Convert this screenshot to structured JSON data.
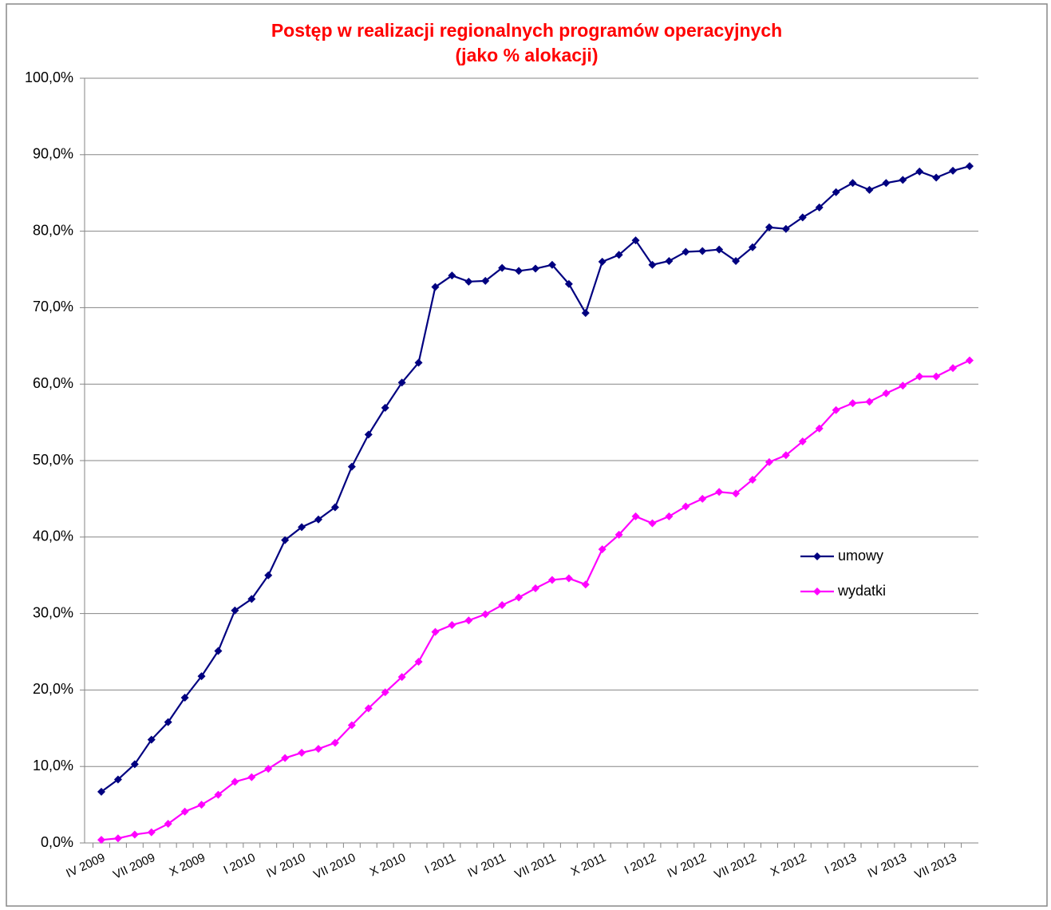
{
  "chart_data": {
    "type": "line",
    "title": "Postęp w realizacji regionalnych programów operacyjnych",
    "subtitle": "(jako % alokacji)",
    "categories": [
      "IV 2009",
      null,
      null,
      "VII 2009",
      null,
      null,
      "X 2009",
      null,
      null,
      "I 2010",
      null,
      null,
      "IV 2010",
      null,
      null,
      "VII 2010",
      null,
      null,
      "X 2010",
      null,
      null,
      "I 2011",
      null,
      null,
      "IV 2011",
      null,
      null,
      "VII 2011",
      null,
      null,
      "X 2011",
      null,
      null,
      "I 2012",
      null,
      null,
      "IV 2012",
      null,
      null,
      "VII 2012",
      null,
      null,
      "X 2012",
      null,
      null,
      "I 2013",
      null,
      null,
      "IV 2013",
      null,
      null,
      "VII 2013",
      null
    ],
    "series": [
      {
        "name": "umowy",
        "color": "#000080",
        "values": [
          6.7,
          8.3,
          10.3,
          13.5,
          15.8,
          19.0,
          21.8,
          25.1,
          30.4,
          31.9,
          35.0,
          39.6,
          41.3,
          42.3,
          43.9,
          49.2,
          53.4,
          56.9,
          60.2,
          62.8,
          72.7,
          74.2,
          73.4,
          73.5,
          75.2,
          74.8,
          75.1,
          75.6,
          73.1,
          69.3,
          76.0,
          76.9,
          78.8,
          75.6,
          76.1,
          77.3,
          77.4,
          77.6,
          76.1,
          77.9,
          80.5,
          80.3,
          81.8,
          83.1,
          85.1,
          86.3,
          85.4,
          86.3,
          86.7,
          87.8,
          87.0,
          87.9,
          88.5
        ]
      },
      {
        "name": "wydatki",
        "color": "#ff00ff",
        "values": [
          0.4,
          0.6,
          1.1,
          1.4,
          2.5,
          4.1,
          5.0,
          6.3,
          8.0,
          8.6,
          9.7,
          11.1,
          11.8,
          12.3,
          13.1,
          15.4,
          17.6,
          19.7,
          21.7,
          23.7,
          27.6,
          28.5,
          29.1,
          29.9,
          31.1,
          32.1,
          33.3,
          34.4,
          34.6,
          33.8,
          38.4,
          40.3,
          42.7,
          41.8,
          42.7,
          44.0,
          45.0,
          45.9,
          45.7,
          47.5,
          49.8,
          50.7,
          52.5,
          54.2,
          56.6,
          57.5,
          57.7,
          58.8,
          59.8,
          61.0,
          61.0,
          62.1,
          63.1
        ]
      }
    ],
    "ylim": [
      0,
      100
    ],
    "yticks": [
      {
        "value": 0,
        "label": "0,0%"
      },
      {
        "value": 10,
        "label": "10,0%"
      },
      {
        "value": 20,
        "label": "20,0%"
      },
      {
        "value": 30,
        "label": "30,0%"
      },
      {
        "value": 40,
        "label": "40,0%"
      },
      {
        "value": 50,
        "label": "50,0%"
      },
      {
        "value": 60,
        "label": "60,0%"
      },
      {
        "value": 70,
        "label": "70,0%"
      },
      {
        "value": 80,
        "label": "80,0%"
      },
      {
        "value": 90,
        "label": "90,0%"
      },
      {
        "value": 100,
        "label": "100,0%"
      }
    ],
    "grid": true,
    "legend": "right"
  }
}
